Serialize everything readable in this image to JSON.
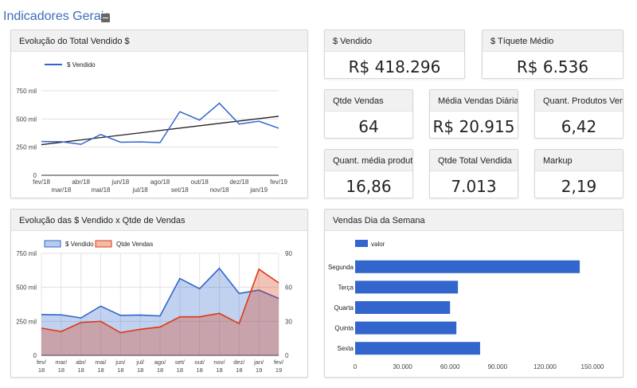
{
  "page": {
    "title": "Indicadores Gerais"
  },
  "kpis": [
    {
      "label": "$ Vendido",
      "value": "R$ 418.296"
    },
    {
      "label": "$ Tíquete Médio",
      "value": "R$ 6.536"
    },
    {
      "label": "Qtde Vendas",
      "value": "64"
    },
    {
      "label": "Média Vendas Diária",
      "value": "R$ 20.915"
    },
    {
      "label": "Quant. Produtos Venda",
      "value": "6,42"
    },
    {
      "label": "Quant. média produto",
      "value": "16,86"
    },
    {
      "label": "Qtde Total Vendida",
      "value": "7.013"
    },
    {
      "label": "Markup",
      "value": "2,19"
    }
  ],
  "panels": {
    "evolucao_total": {
      "title": "Evolução do Total Vendido $"
    },
    "evolucao_vendido_qtde": {
      "title": "Evolução das $ Vendido x Qtde de Vendas"
    },
    "vendas_dia_semana": {
      "title": "Vendas Dia da Semana"
    }
  },
  "chart_data": [
    {
      "type": "line",
      "title": "Evolução do Total Vendido $",
      "x": [
        "fev/18",
        "mar/18",
        "abr/18",
        "mai/18",
        "jun/18",
        "jul/18",
        "ago/18",
        "set/18",
        "out/18",
        "nov/18",
        "dez/18",
        "jan/19",
        "fev/19"
      ],
      "y_ticks": [
        "0",
        "250 mil",
        "500 mil",
        "750 mil"
      ],
      "ylim": [
        0,
        750000
      ],
      "series": [
        {
          "name": "$ Vendido",
          "color": "#3366cc",
          "values": [
            300000,
            298000,
            275000,
            362000,
            294000,
            296000,
            290000,
            565000,
            490000,
            640000,
            455000,
            480000,
            418000
          ]
        }
      ],
      "trendline": {
        "color": "#222222",
        "values": [
          272000,
          524000
        ]
      },
      "legend": "top-left",
      "grid": true
    },
    {
      "type": "area",
      "title": "Evolução das $ Vendido x Qtde de Vendas",
      "x": [
        "fev/18",
        "mar/18",
        "abr/18",
        "mai/18",
        "jun/18",
        "jul/18",
        "ago/18",
        "set/18",
        "out/18",
        "nov/18",
        "dez/18",
        "jan/19",
        "fev/19"
      ],
      "x_tick_lines": [
        [
          "fev/",
          "18"
        ],
        [
          "mar/",
          "18"
        ],
        [
          "abr/",
          "18"
        ],
        [
          "mai/",
          "18"
        ],
        [
          "jun/",
          "18"
        ],
        [
          "jul/",
          "18"
        ],
        [
          "ago/",
          "18"
        ],
        [
          "set/",
          "18"
        ],
        [
          "out/",
          "18"
        ],
        [
          "nov/",
          "18"
        ],
        [
          "dez/",
          "18"
        ],
        [
          "jan/",
          "19"
        ],
        [
          "fev/",
          "19"
        ]
      ],
      "y_ticks": [
        "0",
        "250 mil",
        "500 mil",
        "750 mil"
      ],
      "ylim": [
        0,
        750000
      ],
      "y2_ticks": [
        "0",
        "30",
        "60",
        "90"
      ],
      "y2lim": [
        0,
        90
      ],
      "series": [
        {
          "name": "$ Vendido",
          "color": "#3366cc",
          "axis": "left",
          "values": [
            300000,
            298000,
            275000,
            362000,
            294000,
            296000,
            290000,
            565000,
            490000,
            640000,
            455000,
            480000,
            418000
          ]
        },
        {
          "name": "Qtde Vendas",
          "color": "#dc3912",
          "axis": "right",
          "values": [
            24,
            21,
            29,
            30,
            20,
            23,
            25,
            34,
            34,
            37,
            28,
            76,
            64
          ]
        }
      ],
      "legend": "top-left",
      "grid": true
    },
    {
      "type": "bar",
      "orientation": "horizontal",
      "title": "Vendas Dia da Semana",
      "categories": [
        "Segunda",
        "Terça",
        "Quarta",
        "Quinta",
        "Sexta"
      ],
      "series": [
        {
          "name": "valor",
          "color": "#3366cc",
          "values": [
            142000,
            65000,
            60000,
            64000,
            79000
          ]
        }
      ],
      "x_ticks": [
        "0",
        "30.000",
        "60.000",
        "90.000",
        "120.000",
        "150.000"
      ],
      "xlim": [
        0,
        150000
      ],
      "legend": "top-left",
      "grid": false
    }
  ]
}
